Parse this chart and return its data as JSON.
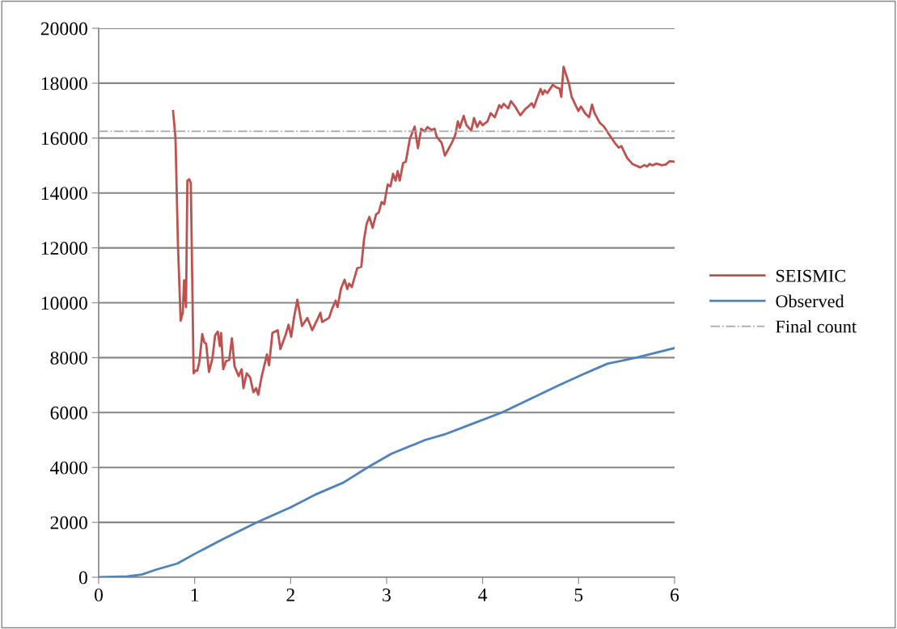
{
  "chart_data": {
    "type": "line",
    "xlim": [
      0,
      6
    ],
    "xticks": [
      0,
      1,
      2,
      3,
      4,
      5,
      6
    ],
    "ylim": [
      0,
      20000
    ],
    "yticks": [
      0,
      2000,
      4000,
      6000,
      8000,
      10000,
      12000,
      14000,
      16000,
      18000,
      20000
    ],
    "grid": "y",
    "legend": "right",
    "marker": "none",
    "series": [
      {
        "name": "SEISMIC",
        "color": "#c0504d",
        "x": [
          0.775,
          0.8,
          0.826,
          0.854,
          0.876,
          0.89,
          0.91,
          0.924,
          0.944,
          0.96,
          0.989,
          1.009,
          1.028,
          1.05,
          1.079,
          1.1,
          1.12,
          1.149,
          1.185,
          1.213,
          1.241,
          1.262,
          1.275,
          1.298,
          1.326,
          1.36,
          1.388,
          1.416,
          1.458,
          1.49,
          1.508,
          1.542,
          1.578,
          1.612,
          1.64,
          1.663,
          1.696,
          1.753,
          1.775,
          1.81,
          1.865,
          1.893,
          1.95,
          1.978,
          2.006,
          2.034,
          2.07,
          2.118,
          2.174,
          2.225,
          2.286,
          2.31,
          2.328,
          2.4,
          2.427,
          2.469,
          2.488,
          2.525,
          2.562,
          2.59,
          2.61,
          2.637,
          2.694,
          2.736,
          2.764,
          2.792,
          2.82,
          2.854,
          2.89,
          2.918,
          2.947,
          2.975,
          3.011,
          3.04,
          3.067,
          3.093,
          3.115,
          3.137,
          3.171,
          3.2,
          3.242,
          3.292,
          3.326,
          3.36,
          3.396,
          3.424,
          3.466,
          3.5,
          3.522,
          3.573,
          3.607,
          3.677,
          3.714,
          3.742,
          3.761,
          3.803,
          3.832,
          3.882,
          3.91,
          3.944,
          3.972,
          4.0,
          4.051,
          4.084,
          4.127,
          4.174,
          4.196,
          4.219,
          4.267,
          4.295,
          4.342,
          4.393,
          4.443,
          4.477,
          4.511,
          4.534,
          4.562,
          4.604,
          4.626,
          4.646,
          4.674,
          4.73,
          4.772,
          4.8,
          4.82,
          4.843,
          4.899,
          4.927,
          4.969,
          4.997,
          5.025,
          5.067,
          5.11,
          5.14,
          5.166,
          5.22,
          5.264,
          5.32,
          5.376,
          5.418,
          5.446,
          5.503,
          5.559,
          5.643,
          5.686,
          5.713,
          5.74,
          5.77,
          5.81,
          5.868,
          5.91,
          5.95,
          6.0
        ],
        "values": [
          16990,
          16020,
          12100,
          9350,
          9640,
          10820,
          9840,
          14450,
          14500,
          14350,
          7430,
          7530,
          7530,
          7870,
          8860,
          8560,
          8510,
          7480,
          7970,
          8810,
          8950,
          8420,
          8900,
          7580,
          7870,
          7920,
          8710,
          7680,
          7330,
          7580,
          6890,
          7430,
          7280,
          6740,
          6890,
          6650,
          7280,
          8120,
          7720,
          8900,
          9000,
          8310,
          8860,
          9200,
          8760,
          9440,
          10110,
          9150,
          9450,
          9000,
          9450,
          9640,
          9300,
          9450,
          9740,
          10080,
          9840,
          10520,
          10840,
          10500,
          10700,
          10570,
          11260,
          11310,
          12290,
          12880,
          13130,
          12730,
          13220,
          13290,
          13670,
          13590,
          14310,
          14240,
          14700,
          14450,
          14800,
          14450,
          15090,
          15140,
          15970,
          16420,
          15630,
          16340,
          16240,
          16400,
          16300,
          16340,
          16040,
          15830,
          15360,
          15810,
          16100,
          16610,
          16370,
          16810,
          16470,
          16270,
          16730,
          16400,
          16610,
          16470,
          16610,
          16910,
          16760,
          17200,
          17100,
          17250,
          17080,
          17350,
          17130,
          16830,
          17050,
          17150,
          17270,
          17120,
          17400,
          17790,
          17590,
          17740,
          17640,
          17940,
          17840,
          17810,
          17500,
          18600,
          17990,
          17510,
          17200,
          16990,
          17150,
          16910,
          16760,
          17220,
          16910,
          16560,
          16420,
          16120,
          15830,
          15650,
          15710,
          15290,
          15060,
          14930,
          15020,
          14960,
          15060,
          15010,
          15070,
          15010,
          15040,
          15160,
          15140
        ]
      },
      {
        "name": "Observed",
        "color": "#4f81bd",
        "x": [
          0,
          0.3,
          0.45,
          0.6,
          0.82,
          1.0,
          1.3,
          1.65,
          2.0,
          2.25,
          2.55,
          2.8,
          3.05,
          3.4,
          3.6,
          3.9,
          4.2,
          4.5,
          4.8,
          5.05,
          5.3,
          5.6,
          6.0
        ],
        "values": [
          0,
          30,
          100,
          280,
          500,
          850,
          1400,
          2000,
          2550,
          3000,
          3450,
          4000,
          4500,
          5000,
          5200,
          5600,
          6000,
          6500,
          7000,
          7400,
          7780,
          8000,
          8350
        ]
      },
      {
        "name": "Final count",
        "color": "#a6a6a6",
        "line_style": "dashdot",
        "x": [
          0,
          6
        ],
        "values": [
          16250,
          16250
        ]
      }
    ]
  }
}
